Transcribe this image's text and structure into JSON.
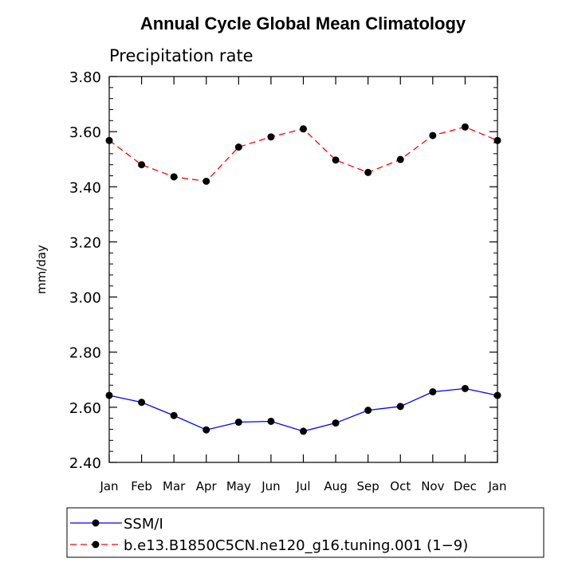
{
  "chart_data": {
    "type": "line",
    "title": "Annual Cycle Global Mean Climatology",
    "subtitle": "Precipitation rate",
    "xlabel": "",
    "ylabel": "mm/day",
    "ylim": [
      2.4,
      3.8
    ],
    "yticks": [
      "2.40",
      "2.60",
      "2.80",
      "3.00",
      "3.20",
      "3.40",
      "3.60",
      "3.80"
    ],
    "categories": [
      "Jan",
      "Feb",
      "Mar",
      "Apr",
      "May",
      "Jun",
      "Jul",
      "Aug",
      "Sep",
      "Oct",
      "Nov",
      "Dec",
      "Jan"
    ],
    "grid": false,
    "legend": "bottom",
    "series": [
      {
        "name": "SSM/I",
        "color": "#0000ff",
        "dash": "solid",
        "values": [
          2.643,
          2.618,
          2.57,
          2.518,
          2.546,
          2.549,
          2.513,
          2.543,
          2.589,
          2.603,
          2.656,
          2.668,
          2.643
        ]
      },
      {
        "name": "b.e13.B1850C5CN.ne120_g16.tuning.001 (1−9)",
        "color": "#ff0000",
        "dash": "dashed",
        "values": [
          3.568,
          3.48,
          3.436,
          3.42,
          3.544,
          3.581,
          3.61,
          3.497,
          3.452,
          3.499,
          3.586,
          3.617,
          3.568
        ]
      }
    ]
  }
}
